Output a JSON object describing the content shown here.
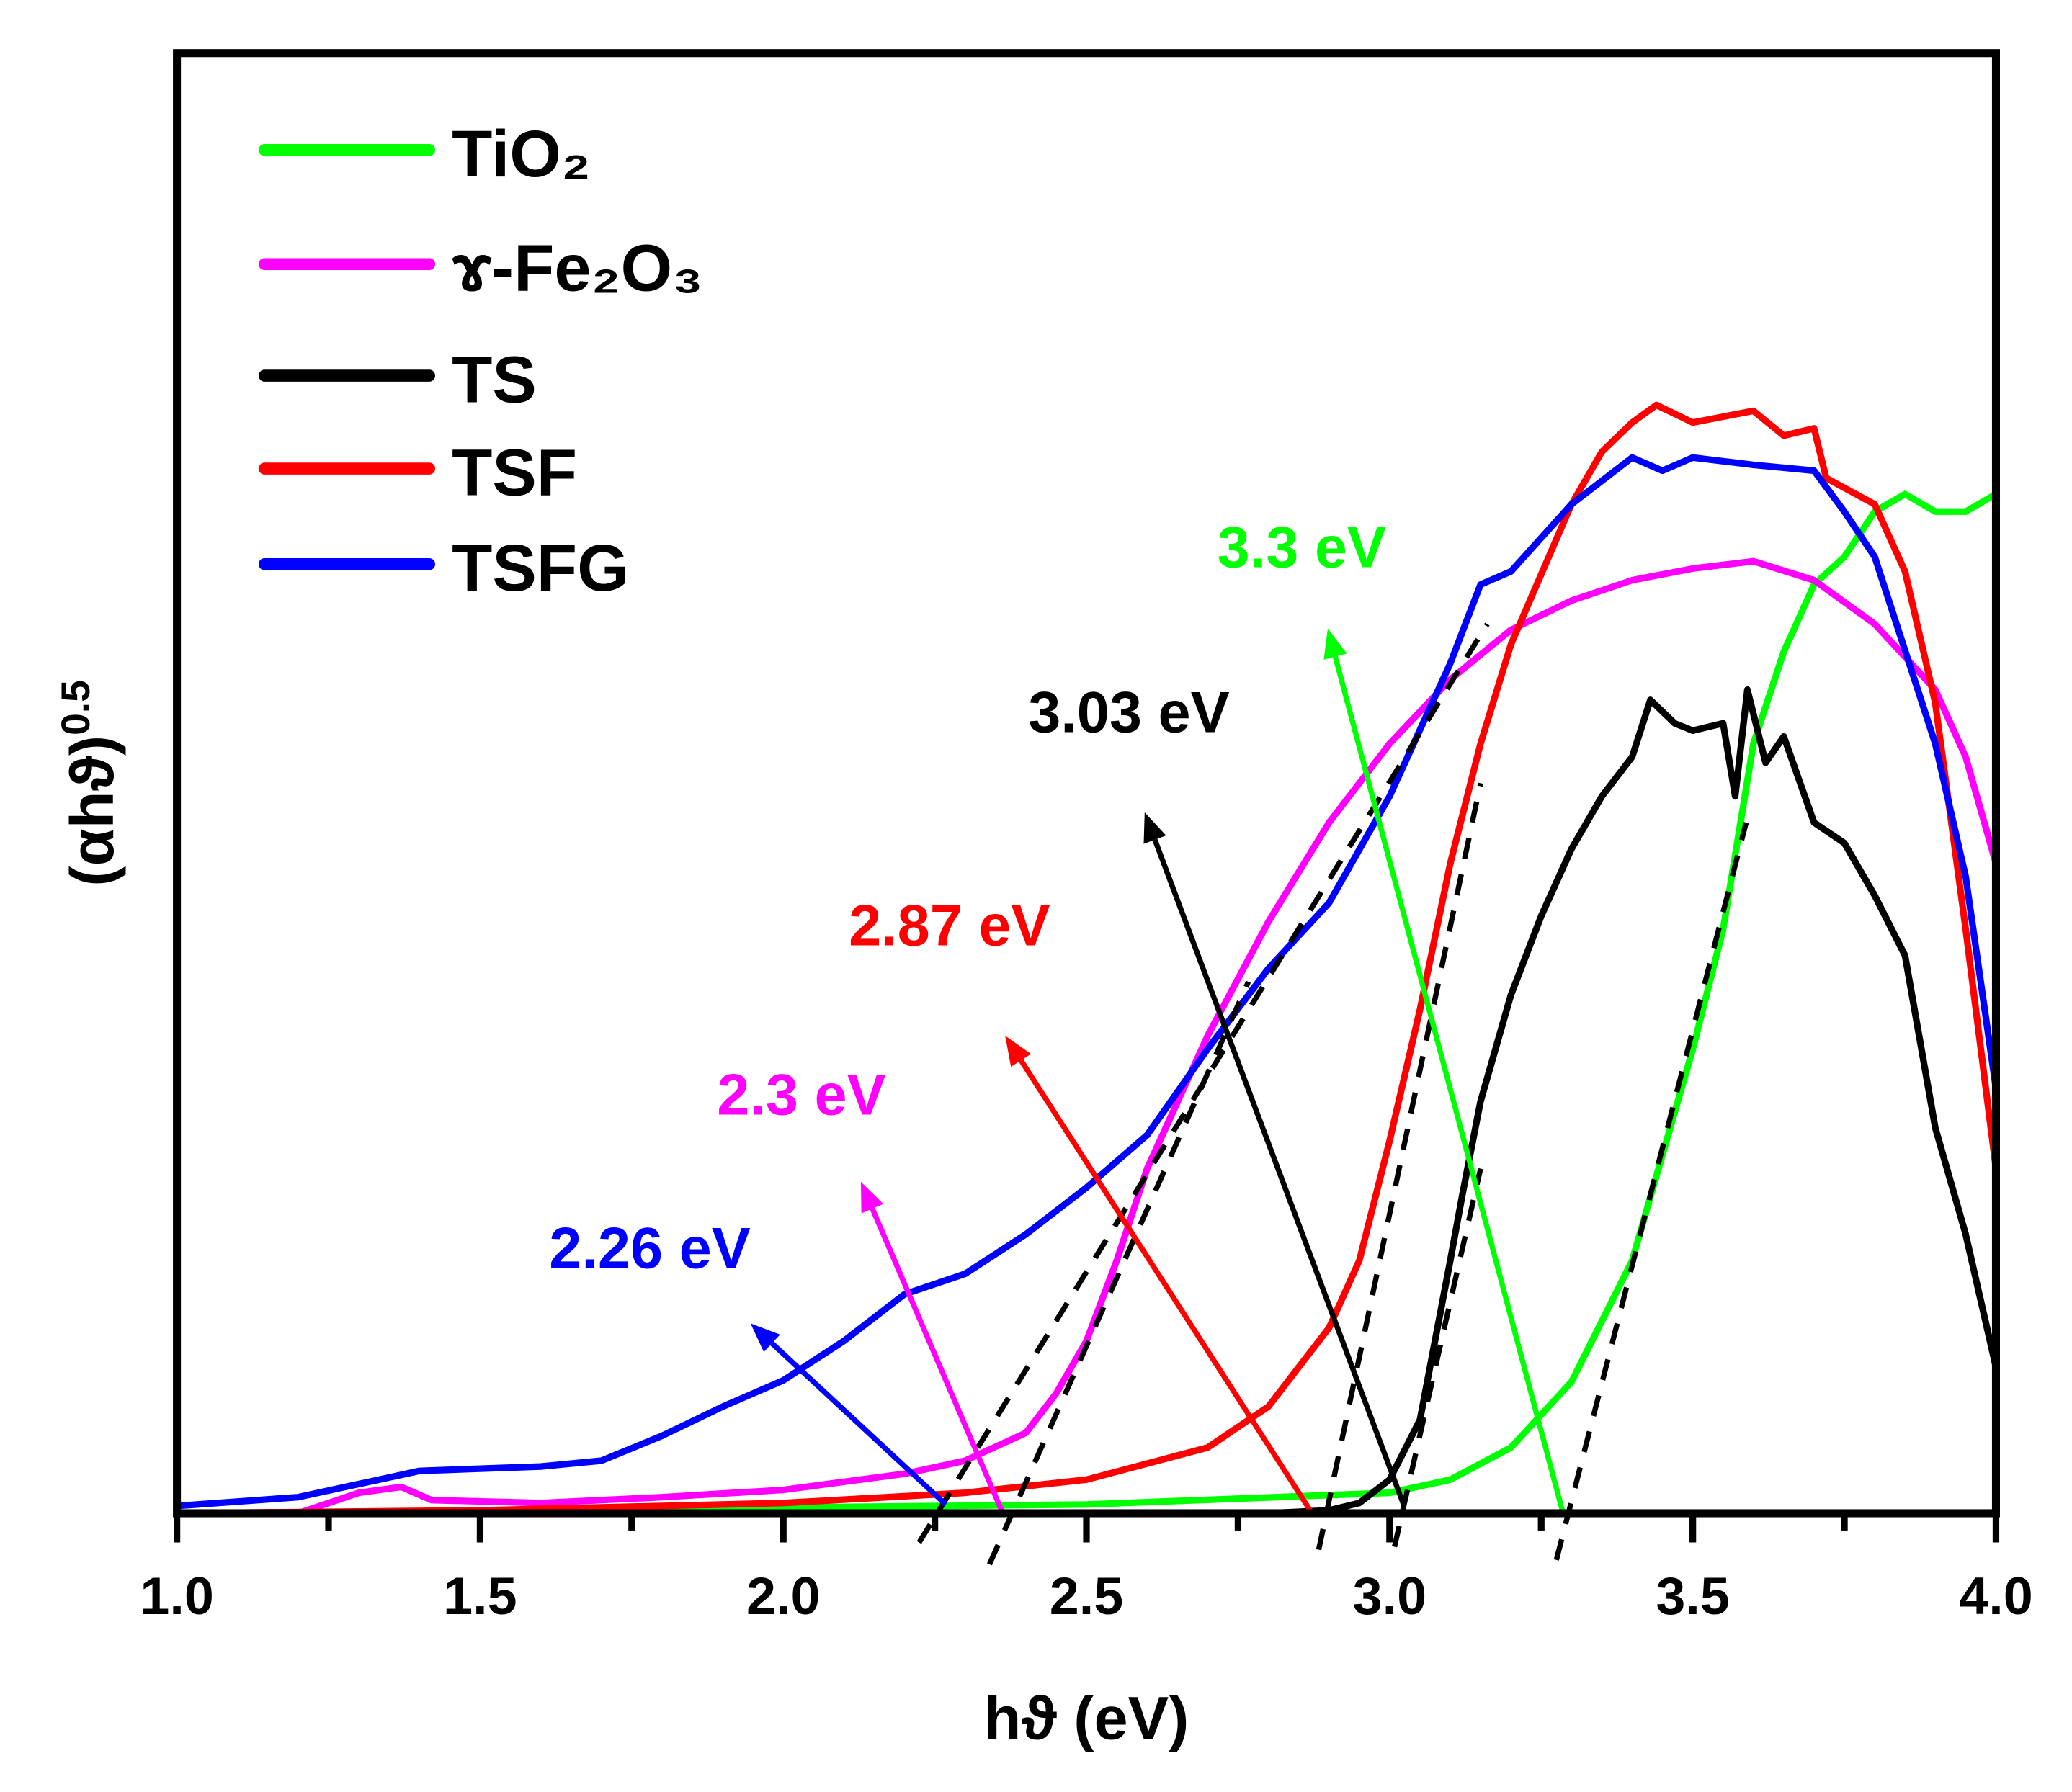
{
  "chart_data": {
    "type": "line",
    "title": "",
    "xlabel": "hϑ (eV)",
    "ylabel": {
      "base": "(αhϑ)",
      "sup": "0.5"
    },
    "xlim": [
      1.0,
      4.0
    ],
    "ylim": [
      0,
      100
    ],
    "x_ticks": [
      "1.0",
      "1.5",
      "2.0",
      "2.5",
      "3.0",
      "3.5",
      "4.0"
    ],
    "y_ticks": [],
    "grid": false,
    "legend_position": "top-left",
    "series": [
      {
        "name": "TiO₂",
        "color": "#00ff00",
        "x": [
          1.55,
          2.5,
          3.0,
          3.1,
          3.2,
          3.3,
          3.4,
          3.5,
          3.55,
          3.6,
          3.65,
          3.7,
          3.75,
          3.8,
          3.85,
          3.9,
          3.95,
          4.0
        ],
        "y": [
          0.2,
          0.6,
          1.4,
          2.3,
          4.5,
          9,
          17.3,
          31.8,
          40,
          52.7,
          59,
          63.6,
          65.5,
          68.6,
          69.8,
          68.6,
          68.6,
          69.8
        ]
      },
      {
        "name": "ɤ-Fe₂O₃",
        "color": "#ff00ff",
        "x": [
          1.0,
          1.2,
          1.3,
          1.37,
          1.42,
          1.6,
          1.8,
          2.0,
          2.2,
          2.3,
          2.4,
          2.45,
          2.5,
          2.55,
          2.6,
          2.7,
          2.8,
          2.9,
          3.0,
          3.1,
          3.2,
          3.3,
          3.4,
          3.5,
          3.6,
          3.7,
          3.8,
          3.9,
          3.95,
          4.0
        ],
        "y": [
          0,
          0,
          1.4,
          1.8,
          0.9,
          0.7,
          1.1,
          1.6,
          2.7,
          3.6,
          5.5,
          8.2,
          11.8,
          17.3,
          23.6,
          32.7,
          40.5,
          47.3,
          52.7,
          57.1,
          60.5,
          62.5,
          63.9,
          64.7,
          65.2,
          63.9,
          60.9,
          56.4,
          51.8,
          44.5
        ]
      },
      {
        "name": "TS",
        "color": "#000000",
        "x": [
          1.0,
          2.8,
          2.9,
          2.95,
          3.0,
          3.05,
          3.1,
          3.12,
          3.15,
          3.2,
          3.25,
          3.3,
          3.35,
          3.4,
          3.43,
          3.47,
          3.5,
          3.55,
          3.57,
          3.59,
          3.62,
          3.65,
          3.7,
          3.75,
          3.8,
          3.85,
          3.9,
          3.95,
          4.0
        ],
        "y": [
          0,
          0,
          0.2,
          0.7,
          2.3,
          6.4,
          17.3,
          21.8,
          28.2,
          35.5,
          40.9,
          45.5,
          49.1,
          51.8,
          55.7,
          54.1,
          53.6,
          54.1,
          49.1,
          56.4,
          51.4,
          53.2,
          47.3,
          45.9,
          42.3,
          38.2,
          26.4,
          19.1,
          10
        ]
      },
      {
        "name": "TSF",
        "color": "#ff0000",
        "x": [
          1.0,
          1.5,
          2.0,
          2.3,
          2.5,
          2.7,
          2.8,
          2.9,
          2.95,
          3.0,
          3.05,
          3.1,
          3.15,
          3.2,
          3.3,
          3.35,
          3.4,
          3.44,
          3.5,
          3.6,
          3.65,
          3.7,
          3.72,
          3.8,
          3.85,
          3.9,
          3.95,
          4.0
        ],
        "y": [
          0,
          0.2,
          0.7,
          1.4,
          2.3,
          4.5,
          7.3,
          12.7,
          17.3,
          25.5,
          34.5,
          44.5,
          52.7,
          59.5,
          69.1,
          72.7,
          74.7,
          75.9,
          74.7,
          75.5,
          73.8,
          74.3,
          70.9,
          69.1,
          64.5,
          55.5,
          40,
          23.6
        ]
      },
      {
        "name": "TSFG",
        "color": "#0000ff",
        "x": [
          1.0,
          1.2,
          1.3,
          1.4,
          1.6,
          1.7,
          1.8,
          1.9,
          2.0,
          2.1,
          2.2,
          2.3,
          2.4,
          2.5,
          2.6,
          2.7,
          2.8,
          2.9,
          3.0,
          3.1,
          3.15,
          3.2,
          3.3,
          3.4,
          3.45,
          3.5,
          3.6,
          3.65,
          3.7,
          3.75,
          3.8,
          3.85,
          3.9,
          3.95,
          4.0
        ],
        "y": [
          0.5,
          1.1,
          2,
          2.9,
          3.2,
          3.6,
          5.3,
          7.3,
          9.1,
          11.8,
          15,
          16.4,
          19.1,
          22.3,
          25.9,
          31.8,
          37.3,
          41.8,
          49.1,
          58.2,
          63.6,
          64.5,
          69.1,
          72.3,
          71.4,
          72.3,
          71.8,
          71.6,
          71.4,
          68.6,
          65.5,
          59.1,
          52.7,
          43.6,
          29.1
        ]
      }
    ],
    "tangent_lines": [
      {
        "for": "TSFG",
        "x": [
          2.224,
          3.161
        ],
        "y": [
          -2.0,
          60.9
        ]
      },
      {
        "for": "ɤ-Fe₂O₃",
        "x": [
          2.34,
          2.767
        ],
        "y": [
          -3.5,
          36.4
        ]
      },
      {
        "for": "TSF",
        "x": [
          2.883,
          3.15
        ],
        "y": [
          -2.5,
          50
        ]
      },
      {
        "for": "TS",
        "x": [
          3.008,
          3.15
        ],
        "y": [
          -2.3,
          23.6
        ]
      },
      {
        "for": "TiO₂",
        "x": [
          3.275,
          3.588
        ],
        "y": [
          -3.2,
          47.3
        ]
      }
    ],
    "annotations": [
      {
        "text": "2.26 eV",
        "color": "#0000ff",
        "from": [
          2.268,
          0.6
        ],
        "to": [
          1.946,
          13.0
        ],
        "label_at": [
          1.78,
          16.8
        ]
      },
      {
        "text": "2.3 eV",
        "color": "#ff00ff",
        "from": [
          2.362,
          0
        ],
        "to": [
          2.128,
          22.7
        ],
        "label_at": [
          2.03,
          27.3
        ]
      },
      {
        "text": "2.87 eV",
        "color": "#ff0000",
        "from": [
          2.872,
          0
        ],
        "to": [
          2.366,
          32.7
        ],
        "label_at": [
          2.274,
          38.9
        ]
      },
      {
        "text": "3.03 eV",
        "color": "#000000",
        "from": [
          3.023,
          0.6
        ],
        "to": [
          2.596,
          48.0
        ],
        "label_at": [
          2.57,
          53.5
        ]
      },
      {
        "text": "3.3 eV",
        "color": "#00ff00",
        "from": [
          3.286,
          0
        ],
        "to": [
          2.898,
          60.6
        ],
        "label_at": [
          2.855,
          64.8
        ]
      }
    ]
  }
}
